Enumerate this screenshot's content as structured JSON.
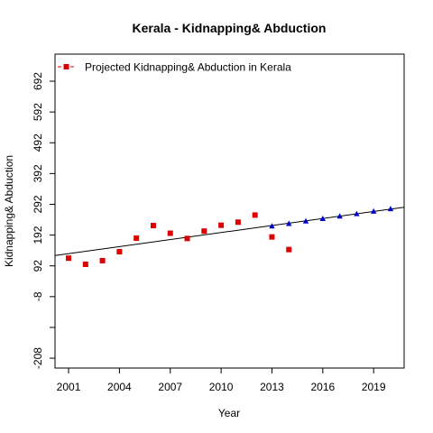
{
  "chart_data": {
    "type": "scatter",
    "title": "Kerala  -  Kidnapping& Abduction",
    "xlabel": "Year",
    "ylabel": "Kidnapping& Abduction",
    "xlim": [
      2000.2,
      2020.8
    ],
    "ylim": [
      -240,
      780
    ],
    "x_ticks": [
      2001,
      2004,
      2007,
      2010,
      2013,
      2016,
      2019
    ],
    "x_tick_labels": [
      "2001",
      "2004",
      "2007",
      "2010",
      "2013",
      "2016",
      "2019"
    ],
    "y_ticks": [
      -208,
      -8,
      92,
      192,
      292,
      392,
      492,
      592,
      692
    ],
    "y_tick_labels": [
      "-208",
      "-8",
      "92",
      "192",
      "292",
      "392",
      "492",
      "592",
      "692"
    ],
    "y_minor_tick": -108,
    "legend": {
      "position": "top-left",
      "label": "Projected  Kidnapping& Abduction  in  Kerala"
    },
    "colors": {
      "observed": "#dd0000",
      "projected": "#0000cc",
      "trend": "#000000"
    },
    "series": [
      {
        "kind": "observed",
        "marker": "square",
        "x": [
          2001,
          2002,
          2003,
          2004,
          2005,
          2006,
          2007,
          2008,
          2009,
          2010,
          2011,
          2012,
          2013,
          2014
        ],
        "y": [
          117,
          97,
          109,
          138,
          182,
          223,
          198,
          181,
          205,
          224,
          234,
          257,
          186,
          145
        ]
      },
      {
        "kind": "projected",
        "marker": "triangle",
        "x": [
          2013,
          2014,
          2015,
          2016,
          2017,
          2018,
          2019,
          2020
        ],
        "y": [
          221,
          229,
          237,
          245,
          253,
          261,
          269,
          277
        ]
      }
    ],
    "trend_line": {
      "x": [
        2000.2,
        2020.8
      ],
      "y": [
        125.5,
        282.6
      ]
    }
  }
}
